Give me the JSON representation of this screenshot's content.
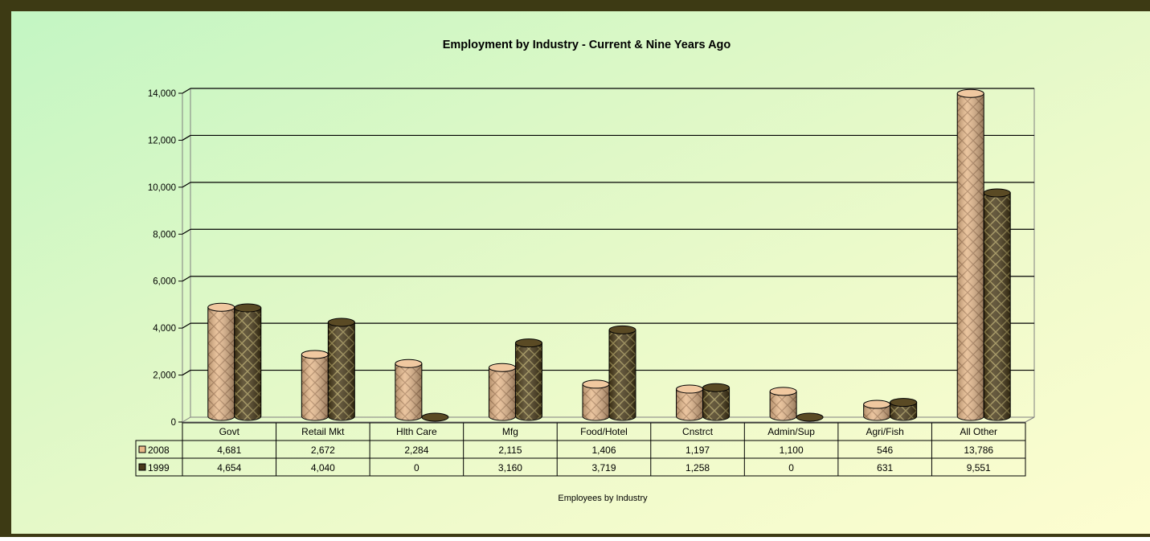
{
  "chart_data": {
    "type": "bar",
    "title": "Employment by Industry - Current & Nine Years Ago",
    "xlabel": "Employees by Industry",
    "ylabel": "",
    "ylim": [
      0,
      14000
    ],
    "yticks": [
      "0",
      "2,000",
      "4,000",
      "6,000",
      "8,000",
      "10,000",
      "12,000",
      "14,000"
    ],
    "categories": [
      "Govt",
      "Retail Mkt",
      "Hlth Care",
      "Mfg",
      "Food/Hotel",
      "Cnstrct",
      "Admin/Sup",
      "Agri/Fish",
      "All Other"
    ],
    "series": [
      {
        "name": "2008",
        "color": "#e8b98a",
        "values": [
          4681,
          2672,
          2284,
          2115,
          1406,
          1197,
          1100,
          546,
          13786
        ],
        "labels": [
          "4,681",
          "2,672",
          "2,284",
          "2,115",
          "1,406",
          "1,197",
          "1,100",
          "546",
          "13,786"
        ]
      },
      {
        "name": "1999",
        "color": "#4a3a1c",
        "values": [
          4654,
          4040,
          0,
          3160,
          3719,
          1258,
          0,
          631,
          9551
        ],
        "labels": [
          "4,654",
          "4,040",
          "0",
          "3,160",
          "3,719",
          "1,258",
          "0",
          "631",
          "9,551"
        ]
      }
    ],
    "grid": true,
    "legend": "data-table"
  }
}
